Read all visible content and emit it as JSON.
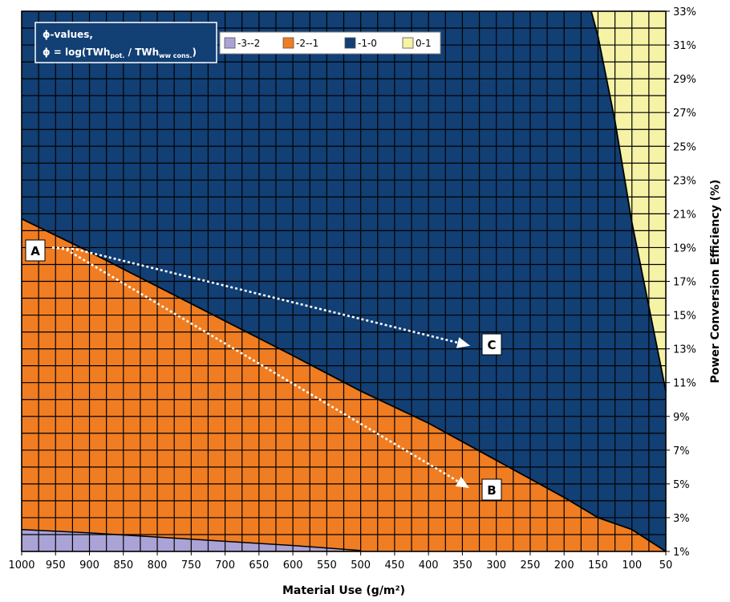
{
  "chart_data": {
    "type": "area",
    "xlabel": "Material Use (g/m²)",
    "ylabel": "Power Conversion Efficiency (%)",
    "x_ticks": [
      1000,
      950,
      900,
      850,
      800,
      750,
      700,
      650,
      600,
      550,
      500,
      450,
      400,
      350,
      300,
      250,
      200,
      150,
      100,
      50
    ],
    "x_tick_labels": [
      "1000",
      "950",
      "900",
      "850",
      "800",
      "750",
      "700",
      "650",
      "600",
      "550",
      "500",
      "450",
      "400",
      "350",
      "300",
      "250",
      "200",
      "150",
      "100",
      "50"
    ],
    "y_ticks": [
      1,
      3,
      5,
      7,
      9,
      11,
      13,
      15,
      17,
      19,
      21,
      23,
      25,
      27,
      29,
      31,
      33
    ],
    "y_tick_labels": [
      "1%",
      "3%",
      "5%",
      "7%",
      "9%",
      "11%",
      "13%",
      "15%",
      "17%",
      "19%",
      "21%",
      "23%",
      "25%",
      "27%",
      "29%",
      "31%",
      "33%"
    ],
    "xlim": [
      1000,
      50
    ],
    "ylim": [
      1,
      33
    ],
    "x_reversed": true,
    "grid": true,
    "legend": {
      "title_line1": "ϕ-values,",
      "title_line2_prefix": "ϕ = log(TWh",
      "title_sub1": "pot.",
      "title_mid": " / TWh",
      "title_sub2": "ww cons.",
      "title_suffix": ")",
      "placement": "top-left"
    },
    "series": [
      {
        "name": "-3--2",
        "color": "#a9a3d6",
        "boundary_upper": [
          [
            1000,
            2.3
          ],
          [
            900,
            2.1
          ],
          [
            800,
            1.85
          ],
          [
            700,
            1.6
          ],
          [
            600,
            1.35
          ],
          [
            500,
            1.05
          ]
        ]
      },
      {
        "name": "-2--1",
        "color": "#f07d22",
        "boundary_upper": [
          [
            1000,
            20.7
          ],
          [
            900,
            18.75
          ],
          [
            800,
            16.7
          ],
          [
            700,
            14.65
          ],
          [
            600,
            12.6
          ],
          [
            500,
            10.5
          ],
          [
            400,
            8.6
          ],
          [
            300,
            6.4
          ],
          [
            200,
            4.2
          ],
          [
            150,
            3.0
          ],
          [
            100,
            2.3
          ],
          [
            50,
            1.0
          ]
        ]
      },
      {
        "name": "-1-0",
        "color": "#123f74"
      },
      {
        "name": "0-1",
        "color": "#f6f2a6",
        "boundary_left": [
          [
            160,
            33
          ],
          [
            150,
            31.5
          ],
          [
            125,
            26.5
          ],
          [
            100,
            20.5
          ],
          [
            75,
            15.5
          ],
          [
            50,
            10.5
          ]
        ]
      }
    ],
    "annotations": [
      {
        "label": "A",
        "x": 1000,
        "y": 19
      },
      {
        "label": "B",
        "x": 300,
        "y": 4.6
      },
      {
        "label": "C",
        "x": 300,
        "y": 13.3
      }
    ],
    "arrows": [
      {
        "from": "A",
        "to": "B",
        "path": [
          [
            955,
            19
          ],
          [
            935,
            18.9
          ],
          [
            350,
            5.0
          ]
        ]
      },
      {
        "from": "A",
        "to": "C",
        "path": [
          [
            955,
            19
          ],
          [
            920,
            18.9
          ],
          [
            350,
            13.3
          ]
        ]
      }
    ]
  }
}
